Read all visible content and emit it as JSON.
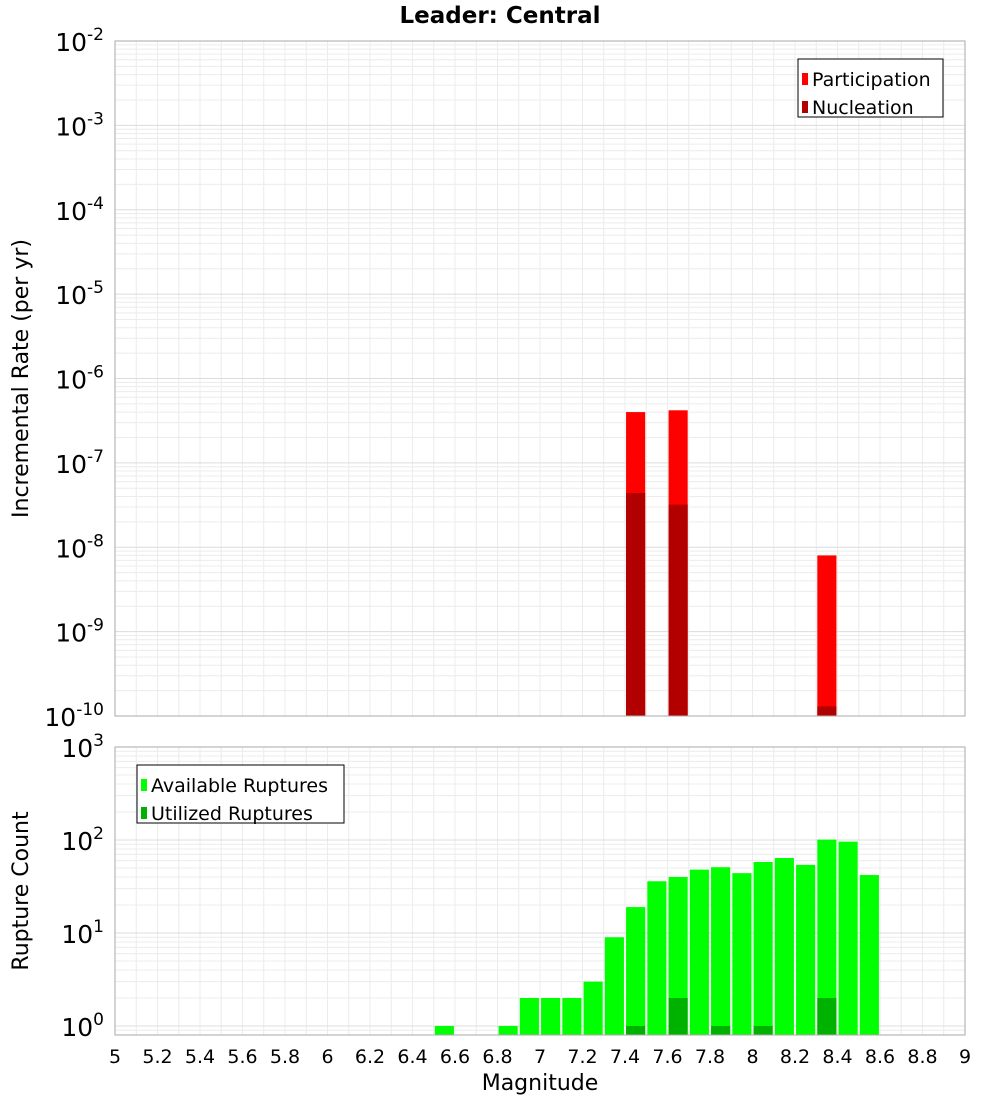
{
  "title": "Leader: Central",
  "chart_data": [
    {
      "type": "bar",
      "name": "top",
      "ylabel": "Incremental Rate (per yr)",
      "yscale": "log",
      "ylim": [
        1e-10,
        0.01
      ],
      "xlim": [
        5,
        9
      ],
      "grid": true,
      "legend_position": "top-right",
      "y_ticks": [
        {
          "base": "10",
          "exp": "-2"
        },
        {
          "base": "10",
          "exp": "-3"
        },
        {
          "base": "10",
          "exp": "-4"
        },
        {
          "base": "10",
          "exp": "-5"
        },
        {
          "base": "10",
          "exp": "-6"
        },
        {
          "base": "10",
          "exp": "-7"
        },
        {
          "base": "10",
          "exp": "-8"
        },
        {
          "base": "10",
          "exp": "-9"
        },
        {
          "base": "10",
          "exp": "-10"
        }
      ],
      "series": [
        {
          "name": "Participation",
          "color": "#ff0000",
          "x": [
            7.45,
            7.65,
            8.35
          ],
          "values": [
            4e-07,
            4.2e-07,
            8e-09
          ]
        },
        {
          "name": "Nucleation",
          "color": "#b20000",
          "x": [
            7.45,
            7.65,
            8.35
          ],
          "values": [
            4.4e-08,
            3.2e-08,
            1.3e-10
          ]
        }
      ]
    },
    {
      "type": "bar",
      "name": "bottom",
      "xlabel": "Magnitude",
      "ylabel": "Rupture Count",
      "yscale": "log",
      "ylim": [
        0.8,
        1000
      ],
      "xlim": [
        5,
        9
      ],
      "grid": true,
      "legend_position": "top-left",
      "x_ticks": [
        "5",
        "5.2",
        "5.4",
        "5.6",
        "5.8",
        "6",
        "6.2",
        "6.4",
        "6.6",
        "6.8",
        "7",
        "7.2",
        "7.4",
        "7.6",
        "7.8",
        "8",
        "8.2",
        "8.4",
        "8.6",
        "8.8",
        "9"
      ],
      "y_ticks": [
        {
          "base": "10",
          "exp": "3"
        },
        {
          "base": "10",
          "exp": "2"
        },
        {
          "base": "10",
          "exp": "1"
        },
        {
          "base": "10",
          "exp": "0"
        }
      ],
      "series": [
        {
          "name": "Available Ruptures",
          "color": "#00ff00",
          "x": [
            6.55,
            6.85,
            6.95,
            7.05,
            7.15,
            7.25,
            7.35,
            7.45,
            7.55,
            7.65,
            7.75,
            7.85,
            7.95,
            8.05,
            8.15,
            8.25,
            8.35,
            8.45,
            8.55
          ],
          "values": [
            1,
            1,
            2,
            2,
            2,
            3,
            9,
            19,
            36,
            40,
            48,
            51,
            44,
            58,
            64,
            54,
            101,
            96,
            42
          ]
        },
        {
          "name": "Utilized Ruptures",
          "color": "#00b200",
          "x": [
            7.45,
            7.65,
            7.85,
            8.05,
            8.35
          ],
          "values": [
            1,
            2,
            1,
            1,
            2
          ]
        }
      ]
    }
  ]
}
